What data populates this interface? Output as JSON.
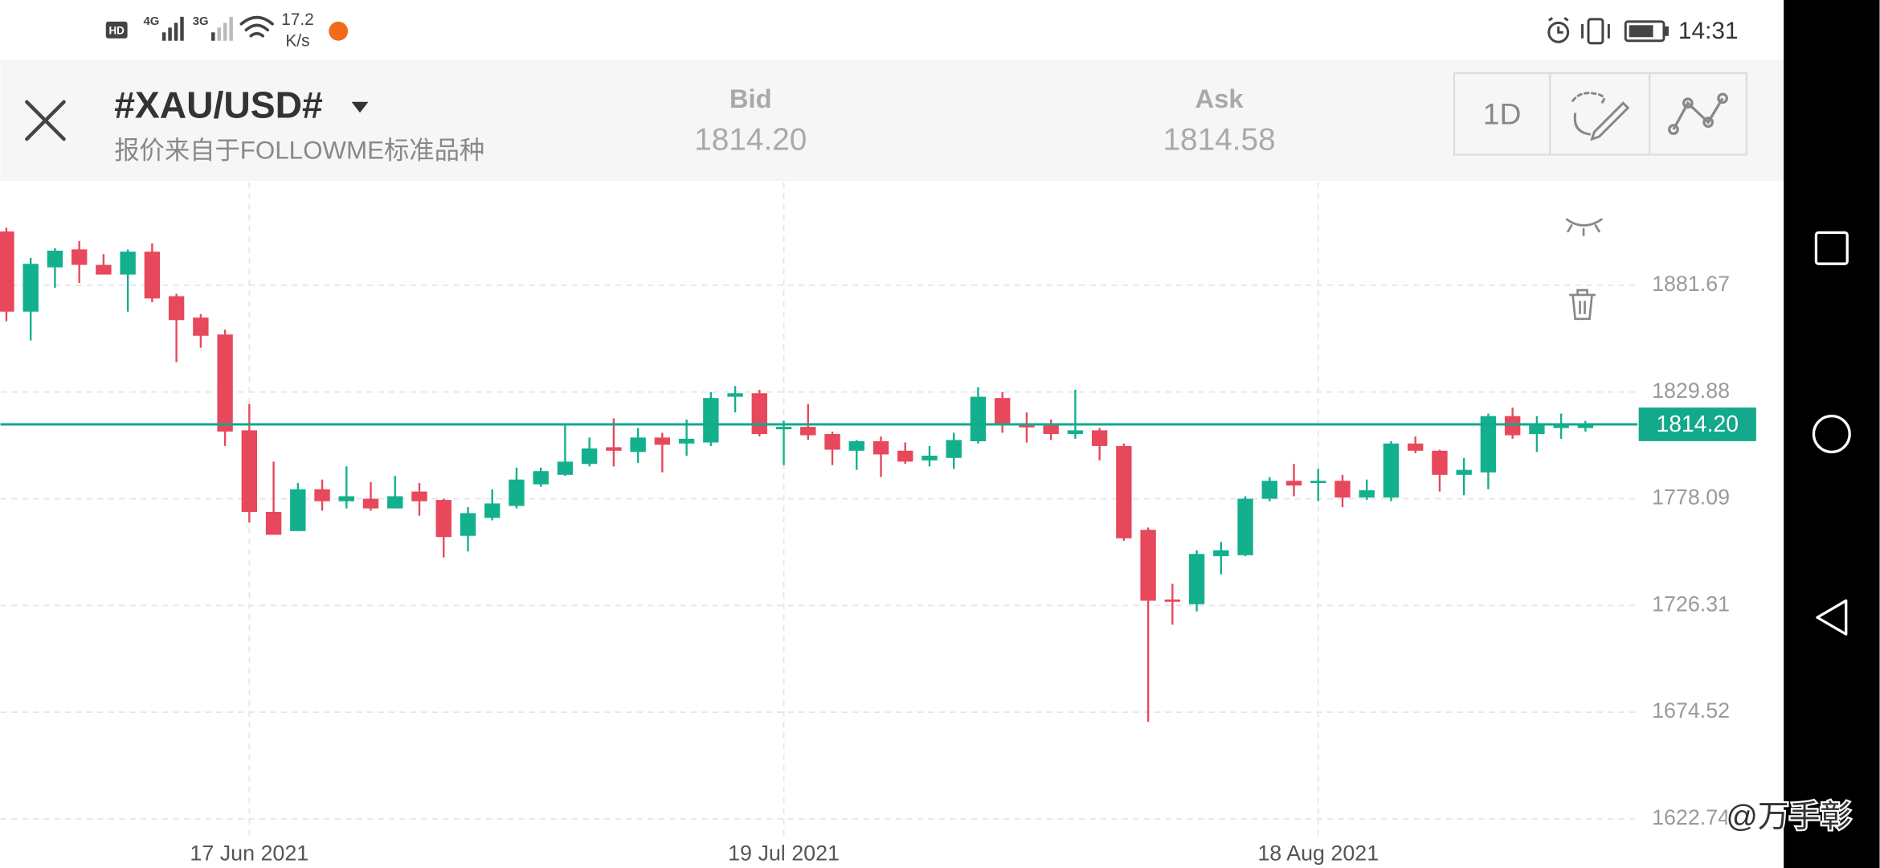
{
  "status_bar": {
    "network_labels": [
      "HD",
      "4G",
      "3G"
    ],
    "speed": "17.2",
    "speed_unit": "K/s",
    "time": "14:31"
  },
  "header": {
    "symbol": "#XAU/USD#",
    "source_note": "报价来自于FOLLOWME标准品种",
    "bid_label": "Bid",
    "bid": "1814.20",
    "ask_label": "Ask",
    "ask": "1814.58",
    "timeframe": "1D"
  },
  "watermark": "@万手彰",
  "chart_data": {
    "type": "candlestick",
    "categories": [
      null,
      null,
      null,
      null,
      null,
      null,
      null,
      null,
      null,
      null,
      "17 Jun 2021",
      null,
      null,
      null,
      null,
      null,
      null,
      null,
      null,
      null,
      null,
      null,
      null,
      null,
      null,
      null,
      null,
      null,
      null,
      null,
      null,
      null,
      "19 Jul 2021",
      null,
      null,
      null,
      null,
      null,
      null,
      null,
      null,
      null,
      null,
      null,
      null,
      null,
      null,
      null,
      null,
      null,
      null,
      null,
      null,
      null,
      "18 Aug 2021",
      null,
      null,
      null,
      null,
      null,
      null,
      null,
      null,
      null,
      null,
      null
    ],
    "open": [
      1907.8,
      1868.9,
      1890.4,
      1899.1,
      1891.6,
      1886.9,
      1898.0,
      1876.4,
      1866.0,
      1857.8,
      1811.3,
      1771.7,
      1762.4,
      1782.7,
      1776.9,
      1778.1,
      1773.4,
      1781.6,
      1777.5,
      1760.1,
      1768.8,
      1774.6,
      1785.1,
      1789.7,
      1795.0,
      1803.1,
      1800.8,
      1807.8,
      1804.9,
      1805.4,
      1827.6,
      1829.3,
      1811.8,
      1813.0,
      1809.5,
      1801.4,
      1806.0,
      1801.4,
      1796.7,
      1797.9,
      1806.0,
      1827.0,
      1813.6,
      1813.6,
      1809.5,
      1811.3,
      1803.7,
      1763.0,
      1729.2,
      1726.9,
      1750.2,
      1750.7,
      1778.1,
      1786.8,
      1785.7,
      1786.8,
      1778.7,
      1778.7,
      1804.9,
      1801.4,
      1789.7,
      1790.9,
      1818.2,
      1809.5,
      1812.4,
      1812.4
    ],
    "high": [
      1909.6,
      1895.0,
      1899.7,
      1903.2,
      1896.8,
      1899.1,
      1902.0,
      1877.6,
      1867.7,
      1860.1,
      1824.1,
      1796.1,
      1785.7,
      1787.4,
      1793.8,
      1786.2,
      1789.2,
      1785.7,
      1778.1,
      1774.0,
      1782.7,
      1793.2,
      1793.2,
      1814.2,
      1807.8,
      1817.1,
      1812.4,
      1810.1,
      1816.5,
      1829.9,
      1832.8,
      1831.0,
      1815.9,
      1824.1,
      1810.7,
      1806.6,
      1808.3,
      1805.4,
      1803.7,
      1810.1,
      1832.2,
      1829.9,
      1820.0,
      1816.5,
      1831.0,
      1812.4,
      1804.9,
      1764.1,
      1736.8,
      1753.1,
      1757.1,
      1779.3,
      1788.6,
      1795.0,
      1792.6,
      1789.7,
      1787.4,
      1806.0,
      1808.3,
      1801.9,
      1797.9,
      1819.4,
      1822.3,
      1818.2,
      1819.4,
      1815.9
    ],
    "low": [
      1864.2,
      1854.9,
      1880.5,
      1882.8,
      1886.9,
      1868.9,
      1873.5,
      1844.4,
      1851.4,
      1803.7,
      1766.5,
      1760.6,
      1762.4,
      1772.3,
      1773.4,
      1772.3,
      1773.4,
      1769.9,
      1749.6,
      1752.5,
      1767.6,
      1773.4,
      1783.9,
      1789.2,
      1793.8,
      1793.8,
      1795.5,
      1790.9,
      1799.0,
      1803.7,
      1820.0,
      1808.3,
      1794.4,
      1806.6,
      1794.4,
      1792.1,
      1788.6,
      1795.0,
      1793.8,
      1792.6,
      1804.9,
      1810.1,
      1805.4,
      1806.6,
      1807.2,
      1796.7,
      1757.7,
      1669.9,
      1717.0,
      1723.4,
      1741.4,
      1750.2,
      1776.9,
      1779.3,
      1776.9,
      1774.0,
      1777.5,
      1776.9,
      1800.2,
      1781.6,
      1779.8,
      1782.7,
      1807.2,
      1800.8,
      1807.2,
      1810.7
    ],
    "close": [
      1868.9,
      1892.1,
      1898.5,
      1891.6,
      1886.9,
      1898.0,
      1875.3,
      1864.8,
      1857.2,
      1810.7,
      1771.7,
      1760.6,
      1782.7,
      1776.9,
      1779.3,
      1773.4,
      1779.3,
      1776.9,
      1759.5,
      1771.1,
      1775.8,
      1787.4,
      1791.5,
      1796.1,
      1802.5,
      1801.4,
      1807.8,
      1804.3,
      1807.2,
      1827.0,
      1829.3,
      1809.5,
      1813.0,
      1808.9,
      1801.9,
      1806.0,
      1799.6,
      1796.1,
      1799.0,
      1806.6,
      1827.6,
      1814.2,
      1813.0,
      1809.5,
      1811.3,
      1803.7,
      1758.9,
      1728.6,
      1728.1,
      1751.3,
      1753.1,
      1778.1,
      1786.8,
      1784.5,
      1786.8,
      1778.7,
      1782.2,
      1804.9,
      1801.4,
      1789.7,
      1792.1,
      1818.2,
      1808.9,
      1813.6,
      1814.2,
      1814.2
    ],
    "up_color": "#13b08e",
    "down_color": "#e8485c",
    "ylim": [
      1614.6,
      1931.7
    ],
    "yticks": [
      1622.74,
      1674.52,
      1726.31,
      1778.09,
      1829.88,
      1881.67
    ],
    "grid": true,
    "price_line": {
      "value": 1814.2,
      "label": "1814.20",
      "color": "#13a98a"
    }
  }
}
